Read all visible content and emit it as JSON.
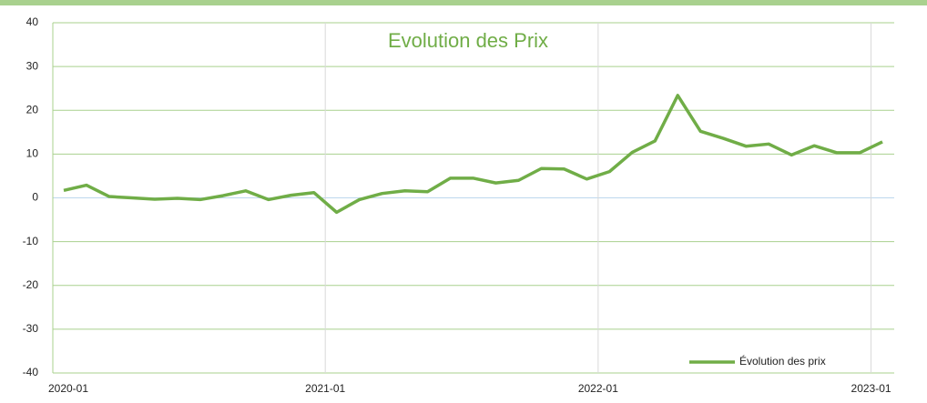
{
  "chart_data": {
    "type": "line",
    "title": "Evolution des Prix",
    "categories": [
      "2020-01",
      null,
      null,
      null,
      null,
      null,
      null,
      null,
      null,
      null,
      null,
      null,
      "2021-01",
      null,
      null,
      null,
      null,
      null,
      null,
      null,
      null,
      null,
      null,
      null,
      "2022-01",
      null,
      null,
      null,
      null,
      null,
      null,
      null,
      null,
      null,
      null,
      null,
      "2023-01"
    ],
    "series": [
      {
        "name": "Évolution des prix",
        "color": "#70ad47",
        "values": [
          1.7,
          2.9,
          0.3,
          0,
          -0.3,
          -0.1,
          -0.4,
          0.5,
          1.6,
          -0.4,
          0.6,
          1.2,
          -3.3,
          -0.4,
          1,
          1.6,
          1.4,
          4.5,
          4.5,
          3.4,
          4,
          6.7,
          6.6,
          4.3,
          6,
          10.4,
          13,
          23.4,
          15.2,
          13.6,
          11.8,
          12.3,
          9.8,
          11.9,
          10.3,
          10.3,
          12.8
        ]
      }
    ],
    "ylim": [
      -40,
      40
    ],
    "yticks": [
      -40,
      -30,
      -20,
      -10,
      0,
      10,
      20,
      30,
      40
    ],
    "grid": true,
    "legend": "bottom-right"
  }
}
